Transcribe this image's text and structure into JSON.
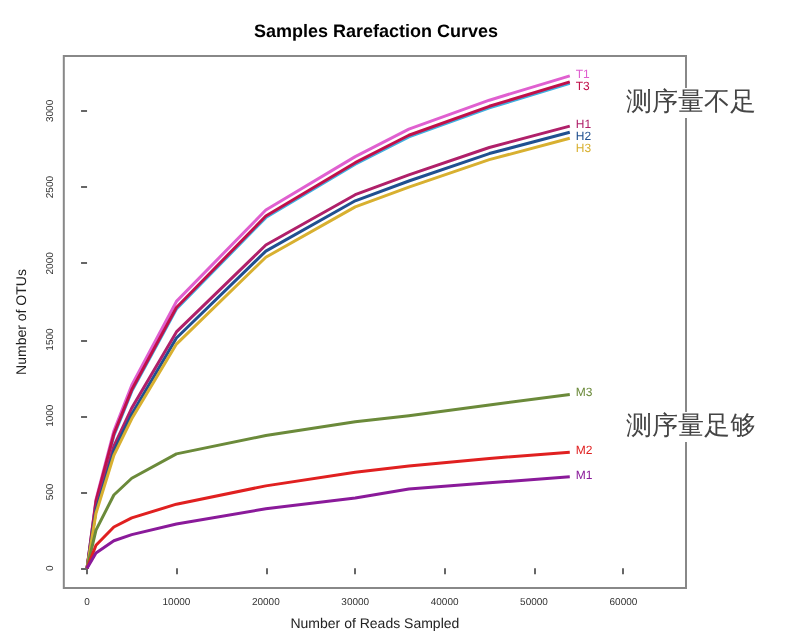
{
  "chart_data": {
    "type": "line",
    "title": "Samples Rarefaction Curves",
    "xlabel": "Number of Reads Sampled",
    "ylabel": "Number of OTUs",
    "x": [
      0,
      1000,
      3000,
      5000,
      10000,
      20000,
      30000,
      36000,
      45000,
      54000
    ],
    "xlim": [
      -2600,
      67000
    ],
    "xticks": [
      0,
      10000,
      20000,
      30000,
      40000,
      50000,
      60000
    ],
    "ylim": [
      -130,
      3360
    ],
    "yticks": [
      0,
      500,
      1000,
      1500,
      2000,
      2500,
      3000
    ],
    "grid": false,
    "legend": false,
    "annotations": [
      "测序量不足",
      "测序量足够"
    ],
    "series": [
      {
        "name": "T1",
        "color": "#e060d0",
        "values": [
          0,
          450,
          900,
          1200,
          1750,
          2350,
          2700,
          2880,
          3070,
          3230
        ]
      },
      {
        "color": "#40b0e0",
        "values": [
          0,
          430,
          870,
          1160,
          1700,
          2300,
          2650,
          2830,
          3020,
          3180
        ]
      },
      {
        "name": "T3",
        "color": "#c0104a",
        "values": [
          0,
          440,
          880,
          1170,
          1710,
          2310,
          2660,
          2840,
          3030,
          3190
        ]
      },
      {
        "name": "H1",
        "color": "#b0206a",
        "values": [
          0,
          400,
          800,
          1050,
          1550,
          2120,
          2450,
          2580,
          2760,
          2900
        ]
      },
      {
        "name": "H2",
        "color": "#205090",
        "values": [
          0,
          380,
          770,
          1010,
          1510,
          2080,
          2410,
          2540,
          2720,
          2860
        ]
      },
      {
        "name": "H3",
        "color": "#d8b030",
        "values": [
          0,
          360,
          740,
          980,
          1470,
          2040,
          2370,
          2500,
          2680,
          2820
        ]
      },
      {
        "name": "M3",
        "color": "#6b8a3a",
        "values": [
          0,
          250,
          480,
          590,
          750,
          870,
          960,
          1000,
          1070,
          1140
        ]
      },
      {
        "name": "M2",
        "color": "#e02020",
        "values": [
          0,
          150,
          270,
          330,
          420,
          540,
          630,
          670,
          720,
          760
        ]
      },
      {
        "name": "M1",
        "color": "#8a1a9a",
        "values": [
          0,
          100,
          180,
          220,
          290,
          390,
          460,
          520,
          560,
          600
        ]
      }
    ]
  }
}
